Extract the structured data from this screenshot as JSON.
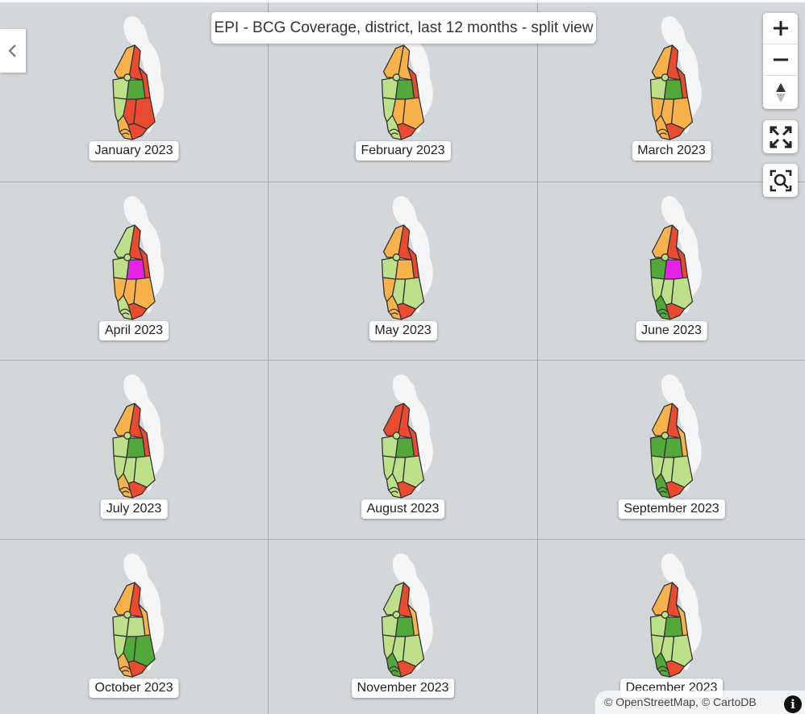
{
  "title": "EPI - BCG Coverage, district, last 12 months - split view",
  "months": [
    {
      "label": "January 2023",
      "fills": {
        "nw": "#f8b24c",
        "ne": "#ea4a30",
        "w": "#bfe08a",
        "c": "#52a838",
        "e": "#ea4a30",
        "sw": "#bfe08a",
        "sc": "#ea4a30",
        "se": "#ea4a30",
        "bot": "#ea4a30",
        "arc": "#f8b24c"
      }
    },
    {
      "label": "February 2023",
      "fills": {
        "nw": "#f8b24c",
        "ne": "#f8b24c",
        "w": "#bfe08a",
        "c": "#52a838",
        "e": "#ea4a30",
        "sw": "#bfe08a",
        "sc": "#f8b24c",
        "se": "#f8b24c",
        "bot": "#ea4a30",
        "arc": "#bfe08a"
      }
    },
    {
      "label": "March 2023",
      "fills": {
        "nw": "#f8b24c",
        "ne": "#ea4a30",
        "w": "#bfe08a",
        "c": "#52a838",
        "e": "#ea4a30",
        "sw": "#f8b24c",
        "sc": "#f8b24c",
        "se": "#f8b24c",
        "bot": "#ea4a30",
        "arc": "#f8b24c"
      }
    },
    {
      "label": "April 2023",
      "fills": {
        "nw": "#bfe08a",
        "ne": "#ea4a30",
        "w": "#bfe08a",
        "c": "#e622e6",
        "e": "#ea4a30",
        "sw": "#f8b24c",
        "sc": "#f8b24c",
        "se": "#f8b24c",
        "bot": "#ea4a30",
        "arc": "#bfe08a"
      }
    },
    {
      "label": "May 2023",
      "fills": {
        "nw": "#f8b24c",
        "ne": "#ea4a30",
        "w": "#bfe08a",
        "c": "#f8b24c",
        "e": "#ea4a30",
        "sw": "#f8b24c",
        "sc": "#bfe08a",
        "se": "#bfe08a",
        "bot": "#ea4a30",
        "arc": "#f8b24c"
      }
    },
    {
      "label": "June 2023",
      "fills": {
        "nw": "#f8b24c",
        "ne": "#ea4a30",
        "w": "#52a838",
        "c": "#e622e6",
        "e": "#ea4a30",
        "sw": "#bfe08a",
        "sc": "#bfe08a",
        "se": "#bfe08a",
        "bot": "#ea4a30",
        "arc": "#52a838"
      }
    },
    {
      "label": "July 2023",
      "fills": {
        "nw": "#f8b24c",
        "ne": "#ea4a30",
        "w": "#bfe08a",
        "c": "#52a838",
        "e": "#ea4a30",
        "sw": "#bfe08a",
        "sc": "#bfe08a",
        "se": "#bfe08a",
        "bot": "#ea4a30",
        "arc": "#f8b24c"
      }
    },
    {
      "label": "August 2023",
      "fills": {
        "nw": "#ea4a30",
        "ne": "#ea4a30",
        "w": "#bfe08a",
        "c": "#52a838",
        "e": "#ea4a30",
        "sw": "#bfe08a",
        "sc": "#bfe08a",
        "se": "#bfe08a",
        "bot": "#ea4a30",
        "arc": "#bfe08a"
      }
    },
    {
      "label": "September 2023",
      "fills": {
        "nw": "#f8b24c",
        "ne": "#ea4a30",
        "w": "#52a838",
        "c": "#52a838",
        "e": "#f8b24c",
        "sw": "#bfe08a",
        "sc": "#bfe08a",
        "se": "#bfe08a",
        "bot": "#ea4a30",
        "arc": "#52a838"
      }
    },
    {
      "label": "October 2023",
      "fills": {
        "nw": "#f8b24c",
        "ne": "#ea4a30",
        "w": "#bfe08a",
        "c": "#bfe08a",
        "e": "#f8b24c",
        "sw": "#bfe08a",
        "sc": "#52a838",
        "se": "#52a838",
        "bot": "#ea4a30",
        "arc": "#f8b24c"
      }
    },
    {
      "label": "November 2023",
      "fills": {
        "nw": "#bfe08a",
        "ne": "#ea4a30",
        "w": "#bfe08a",
        "c": "#52a838",
        "e": "#f8b24c",
        "sw": "#bfe08a",
        "sc": "#bfe08a",
        "se": "#bfe08a",
        "bot": "#ea4a30",
        "arc": "#52a838"
      }
    },
    {
      "label": "December 2023",
      "fills": {
        "nw": "#f8b24c",
        "ne": "#ea4a30",
        "w": "#bfe08a",
        "c": "#52a838",
        "e": "#f8b24c",
        "sw": "#bfe08a",
        "sc": "#bfe08a",
        "se": "#bfe08a",
        "bot": "#ea4a30",
        "arc": "#52a838"
      }
    }
  ],
  "controls": {
    "zoom_in_icon": "plus-icon",
    "zoom_out_icon": "minus-icon",
    "compass_icon": "compass-icon",
    "fullscreen_icon": "fullscreen-icon",
    "zoom_extent_icon": "zoom-extent-icon",
    "collapse_icon": "chevron-left-icon"
  },
  "attribution": "© OpenStreetMap, © CartoDB",
  "info_label": "i"
}
